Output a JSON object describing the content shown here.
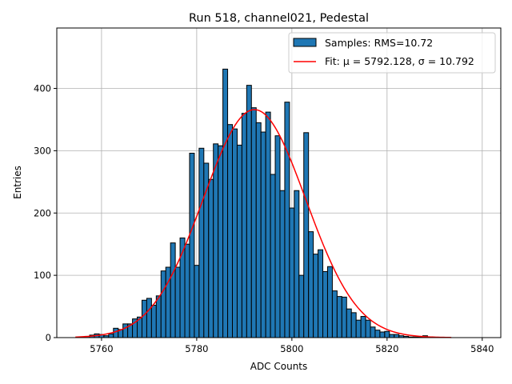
{
  "chart_data": {
    "type": "bar",
    "title": "Run 518, channel021, Pedestal",
    "xlabel": "ADC Counts",
    "ylabel": "Entries",
    "xlim": [
      5750.6,
      5843.9
    ],
    "ylim": [
      0,
      497
    ],
    "xticks": [
      5760,
      5780,
      5800,
      5820,
      5840
    ],
    "yticks": [
      0,
      100,
      200,
      300,
      400
    ],
    "grid": true,
    "legend_position": "top-right",
    "bar_color": "#1f77b4",
    "fit_color": "#ff0000",
    "histogram": {
      "name": "Samples: RMS=10.72",
      "bin_width": 1,
      "x": [
        5757,
        5758,
        5759,
        5760,
        5761,
        5762,
        5763,
        5764,
        5765,
        5766,
        5767,
        5768,
        5769,
        5770,
        5771,
        5772,
        5773,
        5774,
        5775,
        5776,
        5777,
        5778,
        5779,
        5780,
        5781,
        5782,
        5783,
        5784,
        5785,
        5786,
        5787,
        5788,
        5789,
        5790,
        5791,
        5792,
        5793,
        5794,
        5795,
        5796,
        5797,
        5798,
        5799,
        5800,
        5801,
        5802,
        5803,
        5804,
        5805,
        5806,
        5807,
        5808,
        5809,
        5810,
        5811,
        5812,
        5813,
        5814,
        5815,
        5816,
        5817,
        5818,
        5819,
        5820,
        5821,
        5822,
        5823,
        5824,
        5825,
        5826,
        5827,
        5828,
        5829
      ],
      "values": [
        2,
        4,
        6,
        5,
        3,
        6,
        15,
        13,
        22,
        22,
        30,
        33,
        60,
        63,
        52,
        67,
        107,
        113,
        152,
        113,
        160,
        150,
        296,
        116,
        304,
        280,
        254,
        311,
        308,
        431,
        342,
        335,
        309,
        360,
        405,
        369,
        345,
        330,
        362,
        262,
        324,
        236,
        378,
        208,
        236,
        100,
        329,
        170,
        134,
        141,
        106,
        114,
        75,
        66,
        65,
        46,
        40,
        28,
        34,
        28,
        17,
        12,
        9,
        10,
        5,
        5,
        3,
        2,
        1,
        1,
        1,
        3,
        1
      ]
    },
    "fit": {
      "name_prefix": "Fit: ",
      "name": "Fit: μ = 5792.128, σ = 10.792",
      "mu": 5792.128,
      "sigma": 10.792,
      "peak": 366,
      "range": [
        5754.5,
        5833.5
      ]
    }
  }
}
